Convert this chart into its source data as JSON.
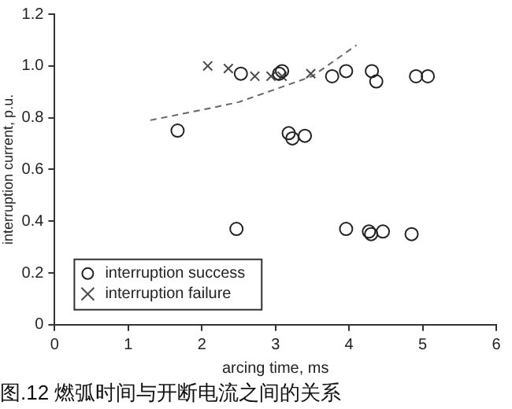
{
  "chart_data": {
    "type": "scatter",
    "title": "图.12 燃弧时间与开断电流之间的关系",
    "xlabel": "arcing time, ms",
    "ylabel": "interruption current, p.u.",
    "xlim": [
      0,
      6
    ],
    "xticks": [
      0,
      1,
      2,
      3,
      4,
      5,
      6
    ],
    "ylim": [
      0,
      1.2
    ],
    "yticks": [
      0,
      {
        "value": 0.2,
        "label": "0.2"
      },
      {
        "value": 0.4,
        "label": "0.4"
      },
      {
        "value": 0.6,
        "label": "0.6"
      },
      {
        "value": 0.8,
        "label": "0.8"
      },
      {
        "value": 1,
        "label": "1.0"
      },
      {
        "value": 1.2,
        "label": "1.2"
      }
    ],
    "grid": false,
    "legend": "bottom left",
    "series": [
      {
        "name": "interruption success",
        "color": "#222222",
        "marker": "circle",
        "x": [
          1.67,
          2.53,
          3.05,
          3.09,
          3.77,
          3.96,
          4.31,
          4.37,
          4.91,
          5.07,
          3.18,
          3.23,
          3.4,
          2.47,
          3.96,
          4.27,
          4.3,
          4.46,
          4.85
        ],
        "values": [
          0.75,
          0.97,
          0.97,
          0.98,
          0.96,
          0.98,
          0.98,
          0.94,
          0.96,
          0.96,
          0.74,
          0.72,
          0.73,
          0.37,
          0.37,
          0.36,
          0.35,
          0.36,
          0.35
        ]
      },
      {
        "name": "interruption failure",
        "color": "#4a4a4a",
        "marker": "cross",
        "x": [
          2.08,
          2.36,
          2.72,
          2.94,
          3.09,
          3.48
        ],
        "values": [
          1.0,
          0.99,
          0.96,
          0.96,
          0.96,
          0.97
        ]
      },
      {
        "type": "line",
        "color": "#666666",
        "marker": "none",
        "line_style": "dashed",
        "x": [
          1.3,
          2.0,
          2.5,
          3.0,
          3.5,
          4.1
        ],
        "values": [
          0.79,
          0.83,
          0.86,
          0.91,
          0.96,
          1.08
        ]
      }
    ]
  }
}
